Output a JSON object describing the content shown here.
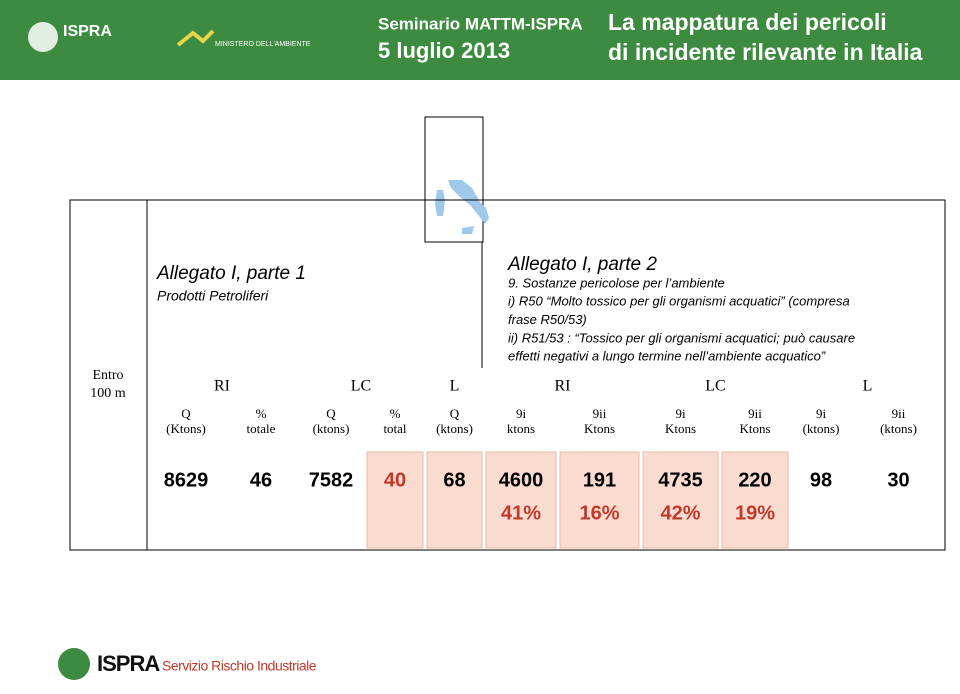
{
  "header": {
    "logo_left": "ISPRA",
    "logo_ministry": "MINISTERO DELL'AMBIENTE",
    "event": "Seminario MATTM-ISPRA",
    "date": "5 luglio 2013",
    "title_line1": "La mappatura dei pericoli",
    "title_line2": "di incidente rilevante in Italia"
  },
  "table": {
    "row_label": [
      "Entro",
      "100 m"
    ],
    "part1": {
      "title": "Allegato I, parte 1",
      "subtitle": "Prodotti Petroliferi"
    },
    "part2": {
      "title": "Allegato I, parte 2",
      "lines": [
        "9. Sostanze pericolose per l’ambiente",
        "i) R50 “Molto tossico per gli organismi acquatici” (compresa",
        "frase R50/53)",
        "ii) R51/53 : “Tossico per gli organismi acquatici; può causare",
        "effetti negativi a lungo termine nell’ambiente acquatico”"
      ]
    },
    "groups": [
      "RI",
      "LC",
      "L",
      "RI",
      "LC",
      "L"
    ],
    "columns": [
      [
        "Q",
        "(Ktons)"
      ],
      [
        "%",
        "totale"
      ],
      [
        "Q",
        "(ktons)"
      ],
      [
        "%",
        "total"
      ],
      [
        "Q",
        "(ktons)"
      ],
      [
        "9i",
        "ktons"
      ],
      [
        "9ii",
        "Ktons"
      ],
      [
        "9i",
        "Ktons"
      ],
      [
        "9ii",
        "Ktons"
      ],
      [
        "9i",
        "(ktons)"
      ],
      [
        "9ii",
        "(ktons)"
      ]
    ],
    "values": [
      8629,
      46,
      7582,
      40,
      68,
      4600,
      191,
      4735,
      220,
      98,
      30
    ],
    "percentages": [
      null,
      null,
      null,
      null,
      null,
      "41%",
      "16%",
      "42%",
      "19%",
      null,
      null
    ]
  },
  "footer": {
    "brand": "ISPRA",
    "service": "Servizio Rischio Industriale"
  }
}
